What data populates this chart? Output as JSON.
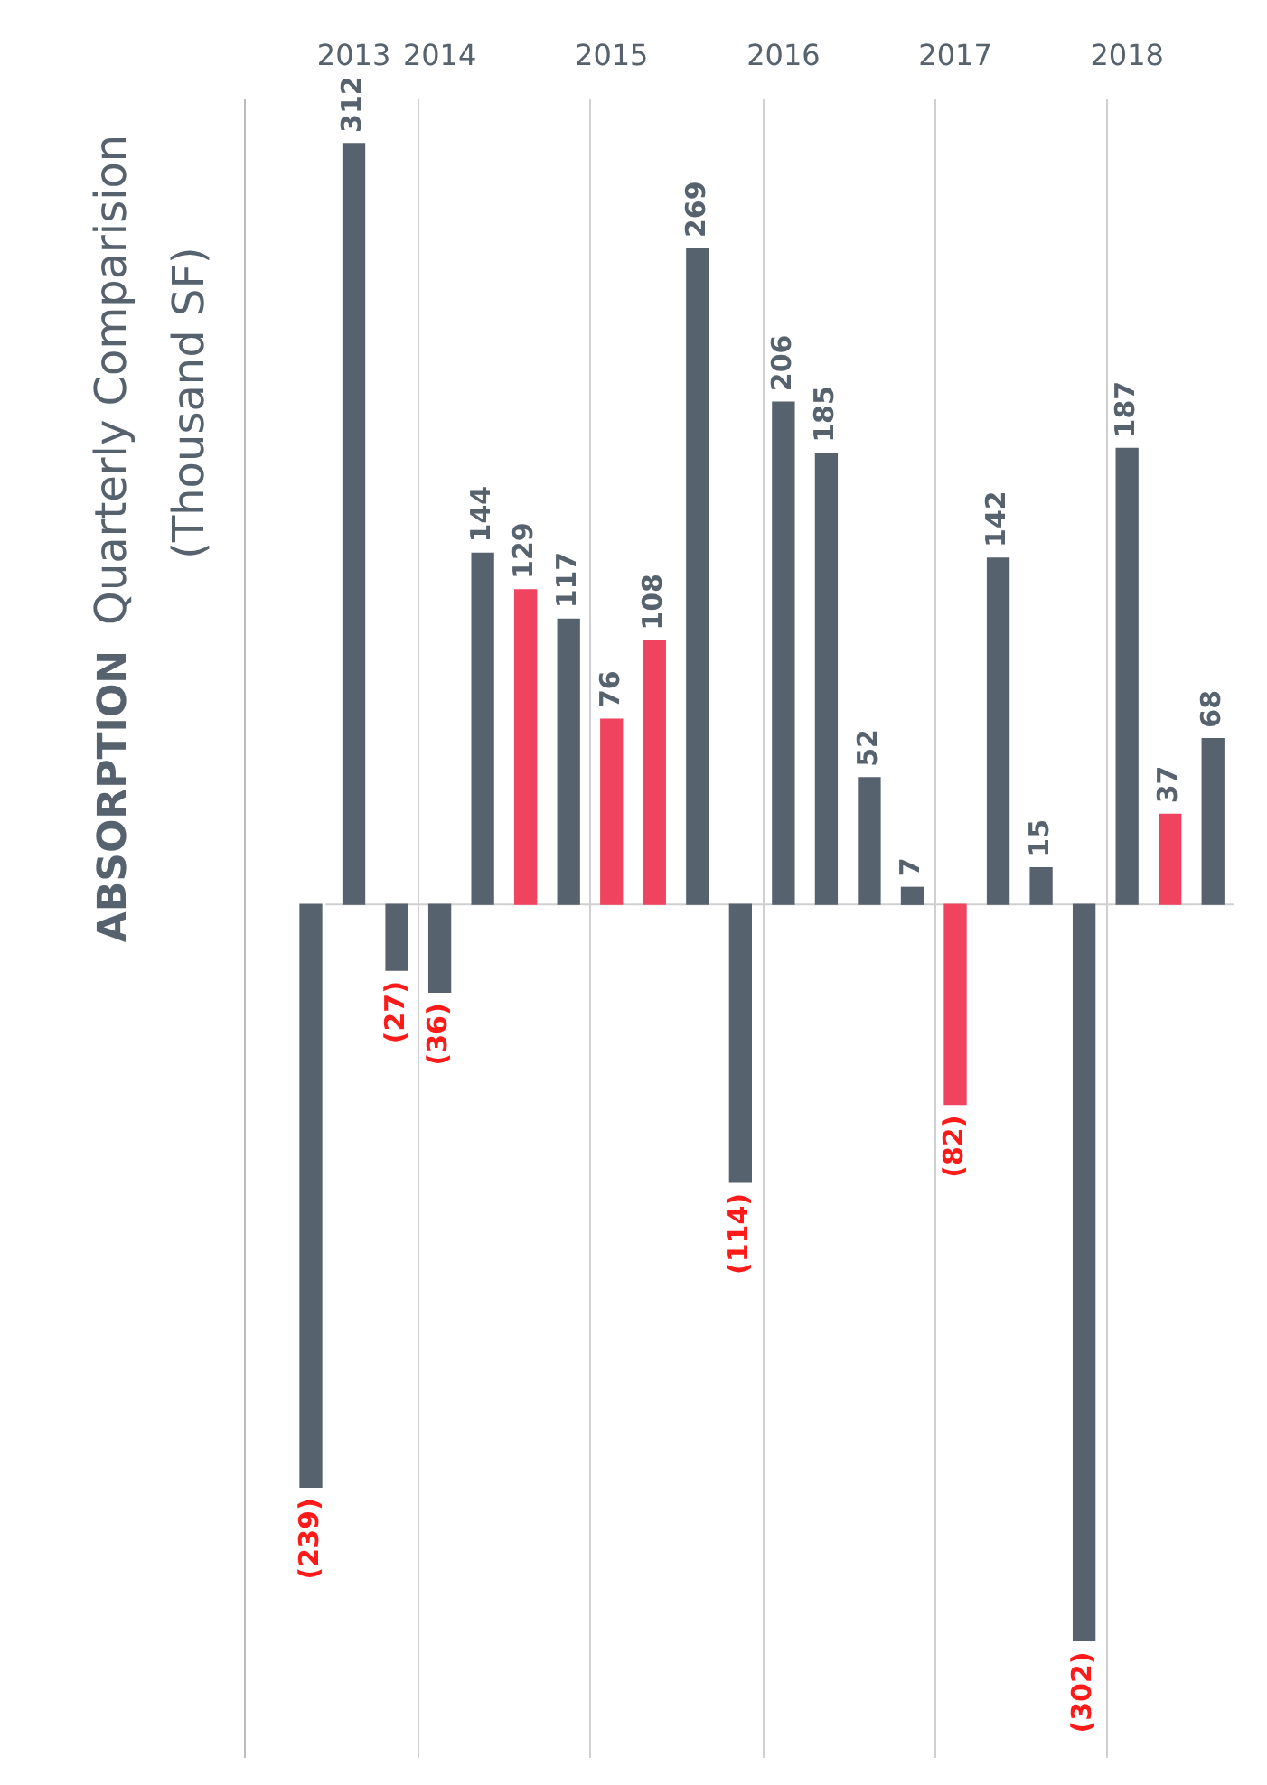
{
  "chart_data": {
    "type": "bar",
    "title": "ABSORPTION",
    "subtitle": "Quarterly Comparision",
    "ylabel": "(Thousand SF)",
    "categories": [
      null,
      "2013",
      null,
      "2014",
      null,
      null,
      null,
      "2015",
      null,
      null,
      null,
      "2016",
      null,
      null,
      null,
      "2017",
      null,
      null,
      null,
      "2018",
      null,
      null
    ],
    "values": [
      -239,
      312,
      -27,
      -36,
      144,
      129,
      117,
      76,
      108,
      269,
      -114,
      206,
      185,
      52,
      7,
      -82,
      142,
      15,
      -302,
      187,
      37,
      68
    ],
    "colors": [
      "#56626e",
      "#56626e",
      "#56626e",
      "#56626e",
      "#56626e",
      "#f0435f",
      "#56626e",
      "#f0435f",
      "#f0435f",
      "#56626e",
      "#56626e",
      "#56626e",
      "#56626e",
      "#56626e",
      "#56626e",
      "#f0435f",
      "#56626e",
      "#56626e",
      "#56626e",
      "#56626e",
      "#f0435f",
      "#56626e"
    ],
    "value_labels": [
      "(239)",
      "312",
      "(27)",
      "(36)",
      "144",
      "129",
      "117",
      "76",
      "108",
      "269",
      "(114)",
      "206",
      "185",
      "52",
      "7",
      "(82)",
      "142",
      "15",
      "(302)",
      "187",
      "37",
      "68"
    ],
    "ylim": [
      -350,
      330
    ],
    "ref_lines": [
      {
        "axis": "y",
        "value": 0,
        "color": "#d0d0d0"
      }
    ],
    "tick_labels": "x",
    "grid": false,
    "legend": false
  }
}
